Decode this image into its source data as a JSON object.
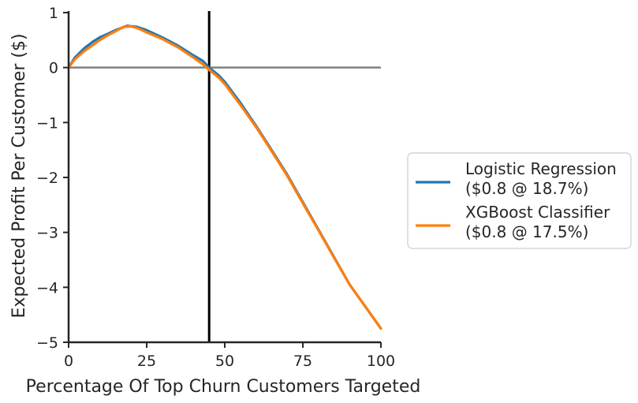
{
  "chart_data": {
    "type": "line",
    "title": "",
    "xlabel": "Percentage Of Top Churn Customers Targeted",
    "ylabel": "Expected Profit Per Customer ($)",
    "xlim": [
      0,
      100
    ],
    "ylim": [
      -5,
      1
    ],
    "xticks": [
      0,
      25,
      50,
      75,
      100
    ],
    "yticks": [
      -5,
      -4,
      -3,
      -2,
      -1,
      0,
      1
    ],
    "xtick_labels": [
      "0",
      "25",
      "50",
      "75",
      "100"
    ],
    "ytick_labels": [
      "−5",
      "−4",
      "−3",
      "−2",
      "−1",
      "0",
      "1"
    ],
    "reference_lines": {
      "horizontal_y": 0,
      "horizontal_color": "#808080",
      "vertical_x": 45,
      "vertical_color": "#000000"
    },
    "grid": false,
    "legend": {
      "placement": "outside-right",
      "entries": [
        {
          "line1": "Logistic Regression",
          "line2": "($0.8 @ 18.7%)"
        },
        {
          "line1": "XGBoost Classifier",
          "line2": "($0.8 @ 17.5%)"
        }
      ]
    },
    "series": [
      {
        "name": "Logistic Regression",
        "color": "#1f77b4",
        "x": [
          0,
          2,
          5,
          8,
          10,
          12,
          15,
          18.7,
          22,
          25,
          30,
          35,
          40,
          43,
          45,
          48,
          50,
          55,
          60,
          65,
          70,
          75,
          80,
          85,
          90,
          95,
          100
        ],
        "y": [
          0,
          0.18,
          0.35,
          0.48,
          0.55,
          0.6,
          0.68,
          0.76,
          0.74,
          0.68,
          0.55,
          0.4,
          0.22,
          0.12,
          0.0,
          -0.14,
          -0.26,
          -0.64,
          -1.06,
          -1.5,
          -1.95,
          -2.45,
          -2.95,
          -3.45,
          -3.95,
          -4.35,
          -4.75
        ]
      },
      {
        "name": "XGBoost Classifier",
        "color": "#ff7f0e",
        "x": [
          0,
          2,
          5,
          8,
          10,
          12,
          15,
          17.5,
          20,
          22,
          25,
          30,
          35,
          40,
          43,
          45,
          48,
          50,
          55,
          60,
          65,
          70,
          75,
          80,
          85,
          90,
          95,
          100
        ],
        "y": [
          0,
          0.15,
          0.3,
          0.42,
          0.5,
          0.57,
          0.66,
          0.74,
          0.75,
          0.72,
          0.64,
          0.52,
          0.37,
          0.18,
          0.06,
          -0.04,
          -0.18,
          -0.3,
          -0.68,
          -1.08,
          -1.52,
          -1.97,
          -2.47,
          -2.96,
          -3.46,
          -3.95,
          -4.35,
          -4.75
        ]
      }
    ]
  }
}
